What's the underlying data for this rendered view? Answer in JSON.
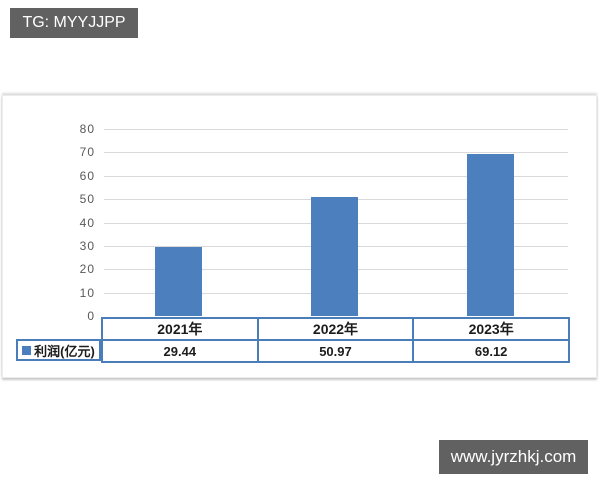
{
  "watermarks": {
    "top_left": "TG: MYYJJPP",
    "bottom_right": "www.jyrzhkj.com"
  },
  "colors": {
    "bar": "#4b7fbd",
    "table_border": "#4a7ebb",
    "gridline": "#d9d9d9",
    "tick_text": "#595959",
    "badge_bg": "#616161",
    "badge_text": "#ffffff"
  },
  "chart_data": {
    "type": "bar",
    "categories": [
      "2021年",
      "2022年",
      "2023年"
    ],
    "series": [
      {
        "name": "利润(亿元)",
        "values": [
          29.44,
          50.97,
          69.12
        ]
      }
    ],
    "value_labels": [
      "29.44",
      "50.97",
      "69.12"
    ],
    "title": "",
    "xlabel": "",
    "ylabel": "",
    "ylim": [
      0,
      80
    ],
    "ytick_step": 10,
    "yticks": [
      0,
      10,
      20,
      30,
      40,
      50,
      60,
      70,
      80
    ],
    "grid": true,
    "legend_position": "bottom-left-data-table",
    "data_table": true
  }
}
